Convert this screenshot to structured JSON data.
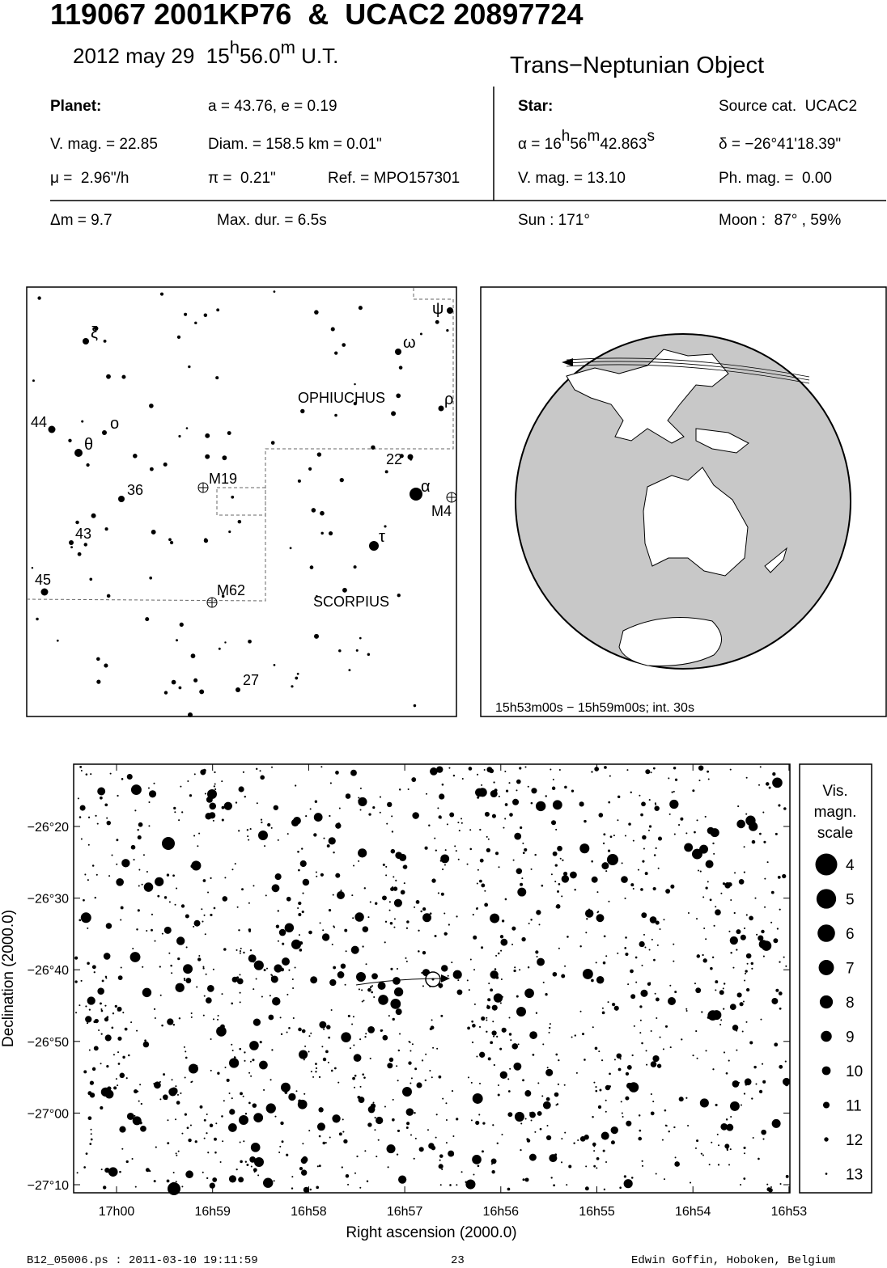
{
  "header": {
    "title": "119067 2001KP76  &  UCAC2 20897724",
    "date": "2012 may 29",
    "time_hours": "15",
    "time_h": "h",
    "time_minutes": "56.0",
    "time_m": "m",
    "time_ut": " U.T.",
    "object_class": "Trans−Neptunian Object"
  },
  "planet": {
    "heading": "Planet:",
    "orbit": "a = 43.76, e = 0.19",
    "vmag": "V. mag. = 22.85",
    "diam": "Diam. = 158.5 km = 0.01\"",
    "mu": "μ =  2.96\"/h",
    "parallax": "π =  0.21\"",
    "ref": "Ref. = MPO157301"
  },
  "star": {
    "heading": "Star:",
    "source": "Source cat.  UCAC2",
    "ra_prefix": "α = 16",
    "ra_h": "h",
    "ra_min": "56",
    "ra_m": "m",
    "ra_sec": "42.863",
    "ra_s": "s",
    "dec": "δ = −26°41'18.39\"",
    "vmag": "V. mag. = 13.10",
    "phmag": "Ph. mag. =  0.00"
  },
  "event": {
    "dm": "Δm = 9.7",
    "maxdur": "Max. dur. = 6.5s",
    "sun": "Sun : 171°",
    "moon": "Moon :  87° , 59%"
  },
  "finder": {
    "labels": [
      "ξ",
      "ω",
      "ψ",
      "ρ",
      "OPHIUCHUS",
      "44",
      "ο",
      "θ",
      "22",
      "M19",
      "36",
      "α",
      "M4",
      "43",
      "τ",
      "45",
      "M62",
      "SCORPIUS",
      "27"
    ]
  },
  "globe": {
    "caption": "15h53m00s − 15h59m00s; int. 30s"
  },
  "starchart": {
    "x_label": "Right ascension (2000.0)",
    "y_label": "Declination (2000.0)",
    "xticks": [
      "17h00",
      "16h59",
      "16h58",
      "16h57",
      "16h56",
      "16h55",
      "16h54",
      "16h53"
    ],
    "yticks": [
      "−26°20",
      "−26°30",
      "−26°40",
      "−26°50",
      "−27°00",
      "−27°10"
    ]
  },
  "scale": {
    "title": [
      "Vis.",
      "magn.",
      "scale"
    ],
    "magnitudes": [
      4,
      5,
      6,
      7,
      8,
      9,
      10,
      11,
      12,
      13
    ]
  },
  "footer": {
    "file": "B12_05006.ps : 2011-03-10 19:11:59",
    "page": "23",
    "author": "Edwin Goffin, Hoboken, Belgium"
  }
}
